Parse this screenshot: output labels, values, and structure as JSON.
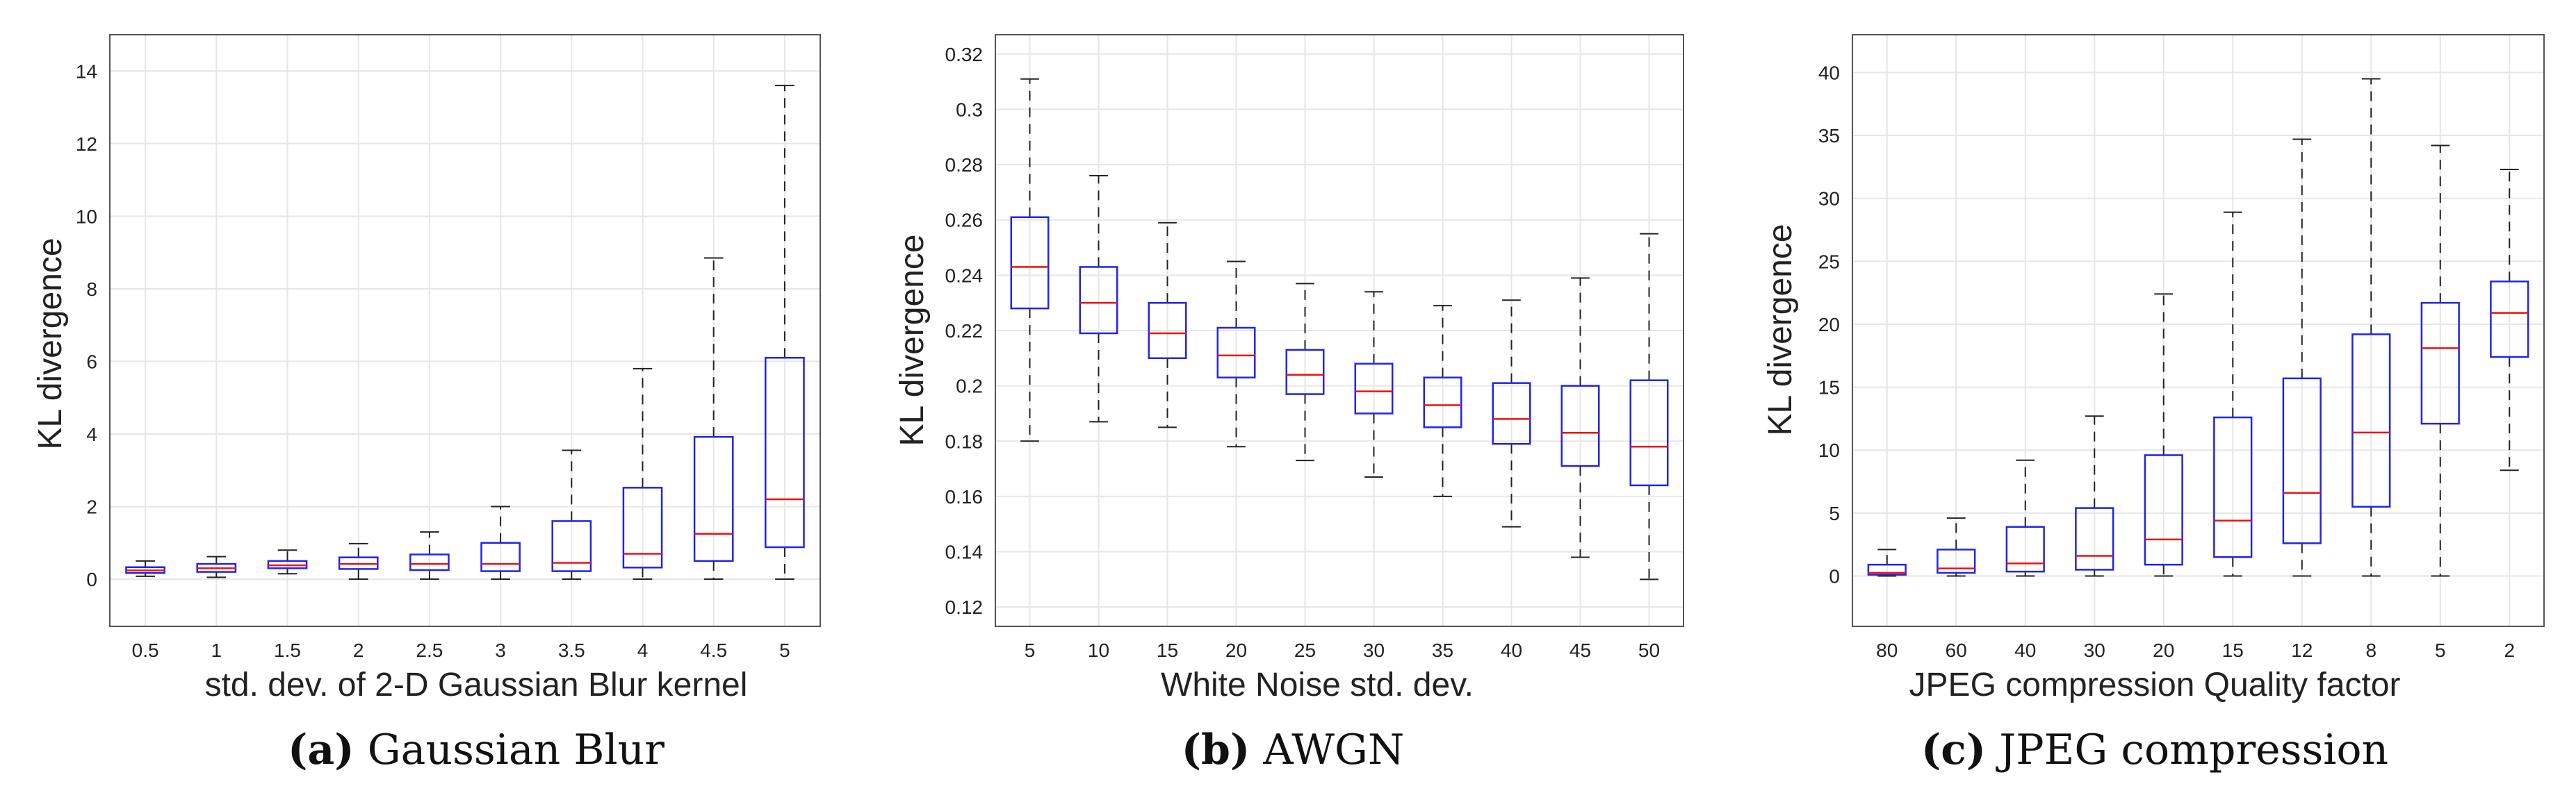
{
  "figure": {
    "panels": [
      {
        "letter": "(a)",
        "caption": "Gaussian Blur"
      },
      {
        "letter": "(b)",
        "caption": "AWGN"
      },
      {
        "letter": "(c)",
        "caption": "JPEG compression"
      }
    ]
  },
  "colors": {
    "box": "#2222ee",
    "median": "#ee1111",
    "whisker": "#222222",
    "grid": "#e6e6e6"
  },
  "chart_data": [
    {
      "type": "boxplot",
      "title": "",
      "caption_letter": "(a)",
      "caption": "Gaussian Blur",
      "xlabel": "std. dev. of 2-D Gaussian Blur kernel",
      "ylabel": "KL divergence",
      "ylim": [
        -1.3,
        15
      ],
      "yticks": [
        0,
        2,
        4,
        6,
        8,
        10,
        12,
        14
      ],
      "ytick_labels": [
        "0",
        "2",
        "4",
        "6",
        "8",
        "10",
        "12",
        "14"
      ],
      "grid": true,
      "categories": [
        "0.5",
        "1",
        "1.5",
        "2",
        "2.5",
        "3",
        "3.5",
        "4",
        "4.5",
        "5"
      ],
      "boxes": [
        {
          "min": 0.08,
          "q1": 0.17,
          "median": 0.24,
          "q3": 0.33,
          "max": 0.5
        },
        {
          "min": 0.05,
          "q1": 0.2,
          "median": 0.3,
          "q3": 0.42,
          "max": 0.62
        },
        {
          "min": 0.15,
          "q1": 0.3,
          "median": 0.38,
          "q3": 0.5,
          "max": 0.8
        },
        {
          "min": 0.0,
          "q1": 0.28,
          "median": 0.42,
          "q3": 0.6,
          "max": 0.98
        },
        {
          "min": 0.0,
          "q1": 0.25,
          "median": 0.42,
          "q3": 0.68,
          "max": 1.3
        },
        {
          "min": 0.0,
          "q1": 0.22,
          "median": 0.42,
          "q3": 1.0,
          "max": 2.0
        },
        {
          "min": 0.0,
          "q1": 0.22,
          "median": 0.45,
          "q3": 1.6,
          "max": 3.55
        },
        {
          "min": 0.0,
          "q1": 0.32,
          "median": 0.7,
          "q3": 2.52,
          "max": 5.8
        },
        {
          "min": 0.0,
          "q1": 0.5,
          "median": 1.25,
          "q3": 3.92,
          "max": 8.85
        },
        {
          "min": 0.0,
          "q1": 0.88,
          "median": 2.2,
          "q3": 6.1,
          "max": 13.6
        }
      ]
    },
    {
      "type": "boxplot",
      "title": "",
      "caption_letter": "(b)",
      "caption": "AWGN",
      "xlabel": "White Noise std. dev.",
      "ylabel": "KL divergence",
      "ylim": [
        0.113,
        0.327
      ],
      "yticks": [
        0.12,
        0.14,
        0.16,
        0.18,
        0.2,
        0.22,
        0.24,
        0.26,
        0.28,
        0.3,
        0.32
      ],
      "ytick_labels": [
        "0.12",
        "0.14",
        "0.16",
        "0.18",
        "0.2",
        "0.22",
        "0.24",
        "0.26",
        "0.28",
        "0.3",
        "0.32"
      ],
      "grid": true,
      "categories": [
        "5",
        "10",
        "15",
        "20",
        "25",
        "30",
        "35",
        "40",
        "45",
        "50"
      ],
      "boxes": [
        {
          "min": 0.18,
          "q1": 0.228,
          "median": 0.243,
          "q3": 0.261,
          "max": 0.311
        },
        {
          "min": 0.187,
          "q1": 0.219,
          "median": 0.23,
          "q3": 0.243,
          "max": 0.276
        },
        {
          "min": 0.185,
          "q1": 0.21,
          "median": 0.219,
          "q3": 0.23,
          "max": 0.259
        },
        {
          "min": 0.178,
          "q1": 0.203,
          "median": 0.211,
          "q3": 0.221,
          "max": 0.245
        },
        {
          "min": 0.173,
          "q1": 0.197,
          "median": 0.204,
          "q3": 0.213,
          "max": 0.237
        },
        {
          "min": 0.167,
          "q1": 0.19,
          "median": 0.198,
          "q3": 0.208,
          "max": 0.234
        },
        {
          "min": 0.16,
          "q1": 0.185,
          "median": 0.193,
          "q3": 0.203,
          "max": 0.229
        },
        {
          "min": 0.149,
          "q1": 0.179,
          "median": 0.188,
          "q3": 0.201,
          "max": 0.231
        },
        {
          "min": 0.138,
          "q1": 0.171,
          "median": 0.183,
          "q3": 0.2,
          "max": 0.239
        },
        {
          "min": 0.13,
          "q1": 0.164,
          "median": 0.178,
          "q3": 0.202,
          "max": 0.255
        }
      ]
    },
    {
      "type": "boxplot",
      "title": "",
      "caption_letter": "(c)",
      "caption": "JPEG compression",
      "xlabel": "JPEG compression Quality factor",
      "ylabel": "KL divergence",
      "ylim": [
        -4,
        43
      ],
      "yticks": [
        0,
        5,
        10,
        15,
        20,
        25,
        30,
        35,
        40
      ],
      "ytick_labels": [
        "0",
        "5",
        "10",
        "15",
        "20",
        "25",
        "30",
        "35",
        "40"
      ],
      "grid": true,
      "categories": [
        "80",
        "60",
        "40",
        "30",
        "20",
        "15",
        "12",
        "8",
        "5",
        "2"
      ],
      "boxes": [
        {
          "min": 0.0,
          "q1": 0.1,
          "median": 0.25,
          "q3": 0.9,
          "max": 2.1
        },
        {
          "min": 0.0,
          "q1": 0.25,
          "median": 0.6,
          "q3": 2.1,
          "max": 4.6
        },
        {
          "min": 0.0,
          "q1": 0.35,
          "median": 1.0,
          "q3": 3.9,
          "max": 9.2
        },
        {
          "min": 0.0,
          "q1": 0.5,
          "median": 1.6,
          "q3": 5.4,
          "max": 12.7
        },
        {
          "min": 0.0,
          "q1": 0.9,
          "median": 2.9,
          "q3": 9.6,
          "max": 22.4
        },
        {
          "min": 0.0,
          "q1": 1.5,
          "median": 4.4,
          "q3": 12.6,
          "max": 28.9
        },
        {
          "min": 0.0,
          "q1": 2.6,
          "median": 6.6,
          "q3": 15.7,
          "max": 34.7
        },
        {
          "min": 0.0,
          "q1": 5.5,
          "median": 11.4,
          "q3": 19.2,
          "max": 39.5
        },
        {
          "min": 0.0,
          "q1": 12.1,
          "median": 18.1,
          "q3": 21.7,
          "max": 34.2
        },
        {
          "min": 8.4,
          "q1": 17.4,
          "median": 20.9,
          "q3": 23.4,
          "max": 32.3
        }
      ]
    }
  ]
}
